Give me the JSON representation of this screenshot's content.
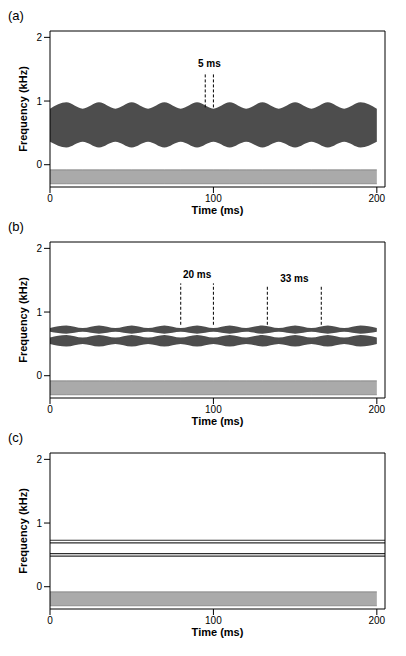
{
  "chart_data": [
    {
      "type": "spectrogram",
      "title": "(a)",
      "xlabel": "Time (ms)",
      "ylabel": "Frequency (kHz)",
      "xlim": [
        0,
        205
      ],
      "ylim": [
        -0.35,
        2.1
      ],
      "xticks": [
        0,
        100,
        200
      ],
      "yticks": [
        0,
        1,
        2
      ],
      "color": "#2e2e2e",
      "x": [
        0,
        10,
        20,
        30,
        40,
        50,
        60,
        70,
        80,
        90,
        100,
        110,
        120,
        130,
        140,
        150,
        160,
        170,
        180,
        190,
        200
      ],
      "bands": [
        {
          "low": [
            0.36,
            0.27,
            0.36,
            0.27,
            0.36,
            0.27,
            0.36,
            0.27,
            0.36,
            0.27,
            0.36,
            0.27,
            0.36,
            0.27,
            0.36,
            0.27,
            0.36,
            0.27,
            0.36,
            0.27,
            0.36
          ],
          "high": [
            0.88,
            0.98,
            0.88,
            0.98,
            0.88,
            0.98,
            0.88,
            0.98,
            0.88,
            0.98,
            0.88,
            0.98,
            0.88,
            0.98,
            0.88,
            0.98,
            0.88,
            0.98,
            0.88,
            0.98,
            0.88
          ]
        }
      ],
      "lines": [],
      "waveform": {
        "low": -0.3,
        "high": -0.08,
        "color": "#555555"
      },
      "annotations": [
        {
          "text": "5 ms",
          "x": [
            95,
            100
          ],
          "y": [
            0.9,
            1.45
          ]
        }
      ]
    },
    {
      "type": "spectrogram",
      "title": "(b)",
      "xlabel": "Time (ms)",
      "ylabel": "Frequency (kHz)",
      "xlim": [
        0,
        205
      ],
      "ylim": [
        -0.35,
        2.1
      ],
      "xticks": [
        0,
        100,
        200
      ],
      "yticks": [
        0,
        1,
        2
      ],
      "color": "#2e2e2e",
      "x": [
        0,
        10,
        20,
        30,
        40,
        50,
        60,
        70,
        80,
        90,
        100,
        110,
        120,
        130,
        140,
        150,
        160,
        170,
        180,
        190,
        200
      ],
      "bands": [
        {
          "low": [
            0.5,
            0.46,
            0.5,
            0.46,
            0.5,
            0.46,
            0.5,
            0.46,
            0.5,
            0.46,
            0.5,
            0.46,
            0.5,
            0.46,
            0.5,
            0.46,
            0.5,
            0.46,
            0.5,
            0.46,
            0.5
          ],
          "high": [
            0.6,
            0.64,
            0.6,
            0.64,
            0.6,
            0.64,
            0.6,
            0.64,
            0.6,
            0.64,
            0.6,
            0.64,
            0.6,
            0.64,
            0.6,
            0.64,
            0.6,
            0.64,
            0.6,
            0.64,
            0.6
          ]
        },
        {
          "low": [
            0.69,
            0.66,
            0.69,
            0.66,
            0.69,
            0.66,
            0.69,
            0.66,
            0.69,
            0.66,
            0.69,
            0.66,
            0.69,
            0.66,
            0.69,
            0.66,
            0.69,
            0.66,
            0.69,
            0.66,
            0.69
          ],
          "high": [
            0.75,
            0.79,
            0.75,
            0.79,
            0.75,
            0.79,
            0.75,
            0.79,
            0.75,
            0.79,
            0.75,
            0.79,
            0.75,
            0.79,
            0.75,
            0.79,
            0.75,
            0.79,
            0.75,
            0.79,
            0.75
          ]
        }
      ],
      "lines": [],
      "waveform": {
        "low": -0.3,
        "high": -0.08,
        "color": "#555555"
      },
      "annotations": [
        {
          "text": "20 ms",
          "x": [
            80,
            100
          ],
          "y": [
            0.8,
            1.45
          ]
        },
        {
          "text": "33 ms",
          "x": [
            133,
            166
          ],
          "y": [
            0.8,
            1.4
          ]
        }
      ]
    },
    {
      "type": "spectrogram",
      "title": "(c)",
      "xlabel": "Time (ms)",
      "ylabel": "Frequency (kHz)",
      "xlim": [
        0,
        205
      ],
      "ylim": [
        -0.35,
        2.1
      ],
      "xticks": [
        0,
        100,
        200
      ],
      "yticks": [
        0,
        1,
        2
      ],
      "color": "#2e2e2e",
      "x": [
        0,
        200
      ],
      "bands": [],
      "lines": [
        0.48,
        0.52,
        0.69,
        0.73
      ],
      "waveform": {
        "low": -0.3,
        "high": -0.08,
        "color": "#555555"
      },
      "annotations": []
    }
  ]
}
